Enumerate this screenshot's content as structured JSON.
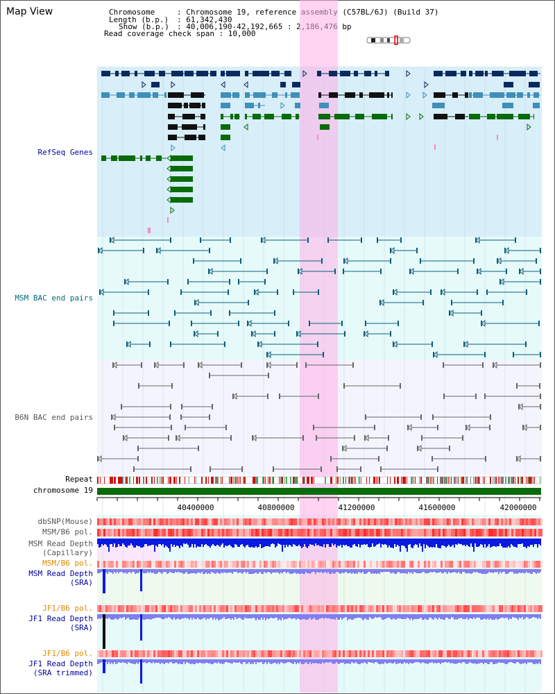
{
  "app_title": "Map View",
  "info": {
    "chromosome_key": "Chromosome",
    "chromosome_val": ": Chromosome 19, reference assembly (C57BL/6J) (Build 37)",
    "length_key": "Length (b.p.)",
    "length_val": ": 61,342,430",
    "show_key": "Show (b.p.)",
    "show_val": ": 40,006,190-42,192,665 : 2,186,476 bp",
    "coverage": "Read coverage check span : 10,000"
  },
  "tracks": {
    "refseq": "RefSeq Genes",
    "msm_bac": "MSM BAC end pairs",
    "b6n_bac": "B6N BAC end pairs",
    "repeat": "Repeat",
    "chromosome": "chromosome 19",
    "dbsnp": "dbSNP(Mouse)",
    "msm_b6_pol_1": "MSM/B6 pol.",
    "msm_read_depth_cap_1": "MSM Read Depth",
    "msm_read_depth_cap_2": "(Capillary)",
    "msm_b6_pol_2": "MSM/B6 pol.",
    "msm_read_depth_sra_1": "MSM Read Depth",
    "msm_read_depth_sra_2": "(SRA)",
    "jf1_b6_pol_1": "JF1/B6 pol.",
    "jf1_read_depth_sra_1": "JF1 Read Depth",
    "jf1_read_depth_sra_2": "(SRA)",
    "jf1_b6_pol_2": "JF1/B6 pol.",
    "jf1_read_depth_trim_1": "JF1 Read Depth",
    "jf1_read_depth_trim_2": "(SRA trimmed)"
  },
  "axis_ticks": [
    "40400000",
    "40800000",
    "41200000",
    "41600000",
    "42000000"
  ],
  "colors": {
    "gene_dark": "#0a2a5e",
    "gene_mid": "#3f8fb8",
    "gene_green": "#0a6b0a",
    "refseq_bg": "#d8eef8",
    "msm_bg": "#e6fafa",
    "highlight": "#ffb0e8",
    "msm_link": "#0a5f7a",
    "b6n_link": "#666666",
    "label_blue": "#0000a0",
    "label_teal": "#006a7a",
    "label_gray": "#555555",
    "label_orange": "#e08a00",
    "snp_red": "#ee3333",
    "depth_blue": "#0a1ae0",
    "depth_light": "#7f7ff0"
  }
}
